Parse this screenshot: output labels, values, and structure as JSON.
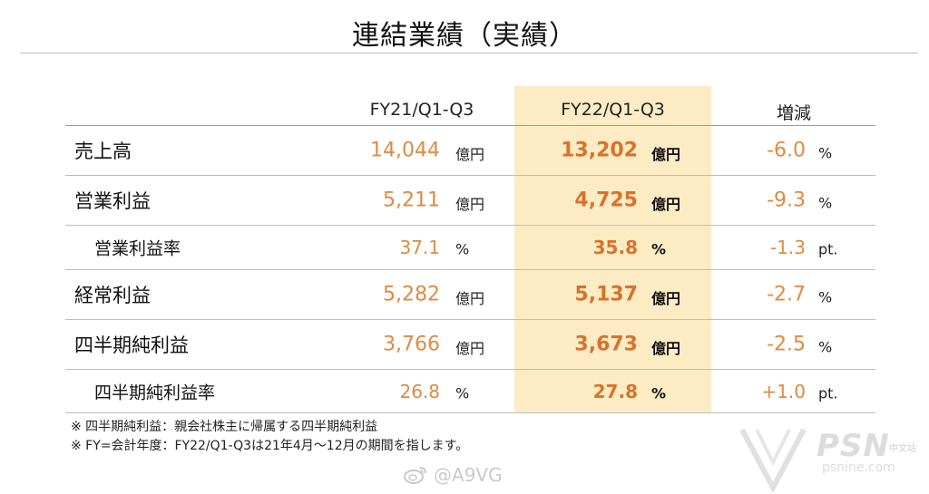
{
  "title": "連結業績（実績）",
  "columns": {
    "prev": "FY21/Q1-Q3",
    "cur": "FY22/Q1-Q3",
    "diff": "増減"
  },
  "rows": [
    {
      "label": "売上高",
      "prev": "14,044",
      "prev_unit": "億円",
      "cur": "13,202",
      "cur_unit": "億円",
      "diff": "-6.0",
      "diff_unit": "%"
    },
    {
      "label": "営業利益",
      "prev": "5,211",
      "prev_unit": "億円",
      "cur": "4,725",
      "cur_unit": "億円",
      "diff": "-9.3",
      "diff_unit": "%"
    },
    {
      "label": "営業利益率",
      "prev": "37.1",
      "prev_unit": "%",
      "cur": "35.8",
      "cur_unit": "%",
      "diff": "-1.3",
      "diff_unit": "pt."
    },
    {
      "label": "経常利益",
      "prev": "5,282",
      "prev_unit": "億円",
      "cur": "5,137",
      "cur_unit": "億円",
      "diff": "-2.7",
      "diff_unit": "%"
    },
    {
      "label": "四半期純利益",
      "prev": "3,766",
      "prev_unit": "億円",
      "cur": "3,673",
      "cur_unit": "億円",
      "diff": "-2.5",
      "diff_unit": "%"
    },
    {
      "label": "四半期純利益率",
      "prev": "26.8",
      "prev_unit": "%",
      "cur": "27.8",
      "cur_unit": "%",
      "diff": "+1.0",
      "diff_unit": "pt."
    }
  ],
  "notes": [
    "※ 四半期純利益：親会社株主に帰属する四半期純利益",
    "※ FY=会計年度：FY22/Q1-Q3は21年4月～12月の期間を指します。"
  ],
  "watermarks": {
    "weibo": "@A9VG",
    "psn": "PSN",
    "psn_cn": "中文站",
    "psn_url": "psnine.com"
  },
  "colors": {
    "highlight": "#fdebc4",
    "value_orange": "#e08a42",
    "value_orange_bold": "#d9722a"
  }
}
